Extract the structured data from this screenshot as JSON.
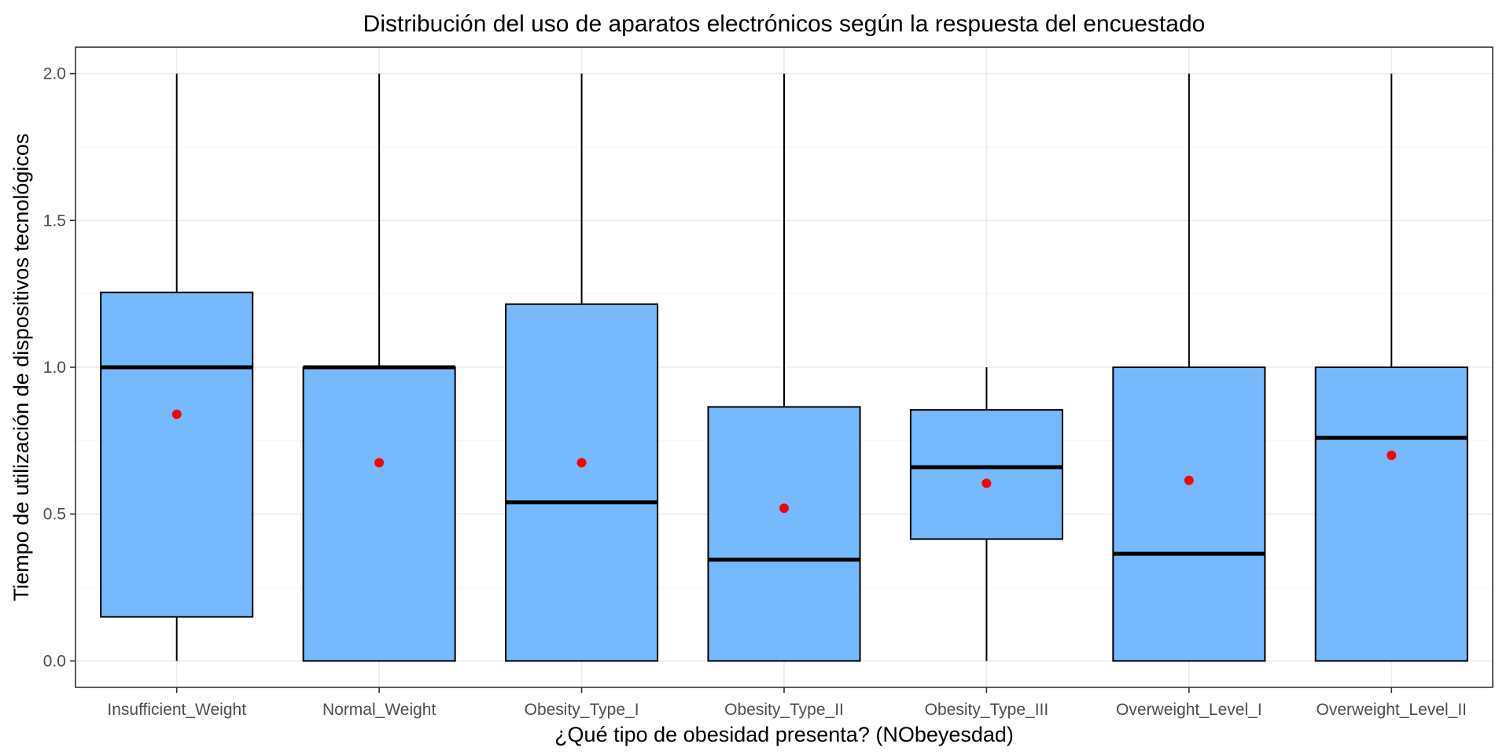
{
  "chart_data": {
    "type": "boxplot",
    "title": "Distribución del uso de aparatos electrónicos según la respuesta del encuestado",
    "xlabel": "¿Qué tipo de obesidad presenta? (NObeyesdad)",
    "ylabel": "Tiempo de utilización de dispositivos tecnológicos",
    "ylim": [
      -0.09,
      2.09
    ],
    "yticks": [
      0.0,
      0.5,
      1.0,
      1.5,
      2.0
    ],
    "ytick_labels": [
      "0.0",
      "0.5",
      "1.0",
      "1.5",
      "2.0"
    ],
    "grid": true,
    "categories": [
      "Insufficient_Weight",
      "Normal_Weight",
      "Obesity_Type_I",
      "Obesity_Type_II",
      "Obesity_Type_III",
      "Overweight_Level_I",
      "Overweight_Level_II"
    ],
    "boxes": [
      {
        "category": "Insufficient_Weight",
        "whisker_low": 0.0,
        "q1": 0.15,
        "median": 1.0,
        "q3": 1.255,
        "whisker_high": 2.0,
        "mean": 0.84
      },
      {
        "category": "Normal_Weight",
        "whisker_low": 0.0,
        "q1": 0.0,
        "median": 1.0,
        "q3": 1.0,
        "whisker_high": 2.0,
        "mean": 0.675
      },
      {
        "category": "Obesity_Type_I",
        "whisker_low": 0.0,
        "q1": 0.0,
        "median": 0.54,
        "q3": 1.215,
        "whisker_high": 2.0,
        "mean": 0.675
      },
      {
        "category": "Obesity_Type_II",
        "whisker_low": 0.0,
        "q1": 0.0,
        "median": 0.345,
        "q3": 0.865,
        "whisker_high": 2.0,
        "mean": 0.52
      },
      {
        "category": "Obesity_Type_III",
        "whisker_low": 0.0,
        "q1": 0.415,
        "median": 0.66,
        "q3": 0.855,
        "whisker_high": 1.0,
        "mean": 0.605
      },
      {
        "category": "Overweight_Level_I",
        "whisker_low": 0.0,
        "q1": 0.0,
        "median": 0.365,
        "q3": 1.0,
        "whisker_high": 2.0,
        "mean": 0.615
      },
      {
        "category": "Overweight_Level_II",
        "whisker_low": 0.0,
        "q1": 0.0,
        "median": 0.76,
        "q3": 1.0,
        "whisker_high": 2.0,
        "mean": 0.7
      }
    ],
    "colors": {
      "box_fill": "#77b9fd",
      "mean_point": "#ff0000",
      "median_line": "#000000"
    }
  }
}
